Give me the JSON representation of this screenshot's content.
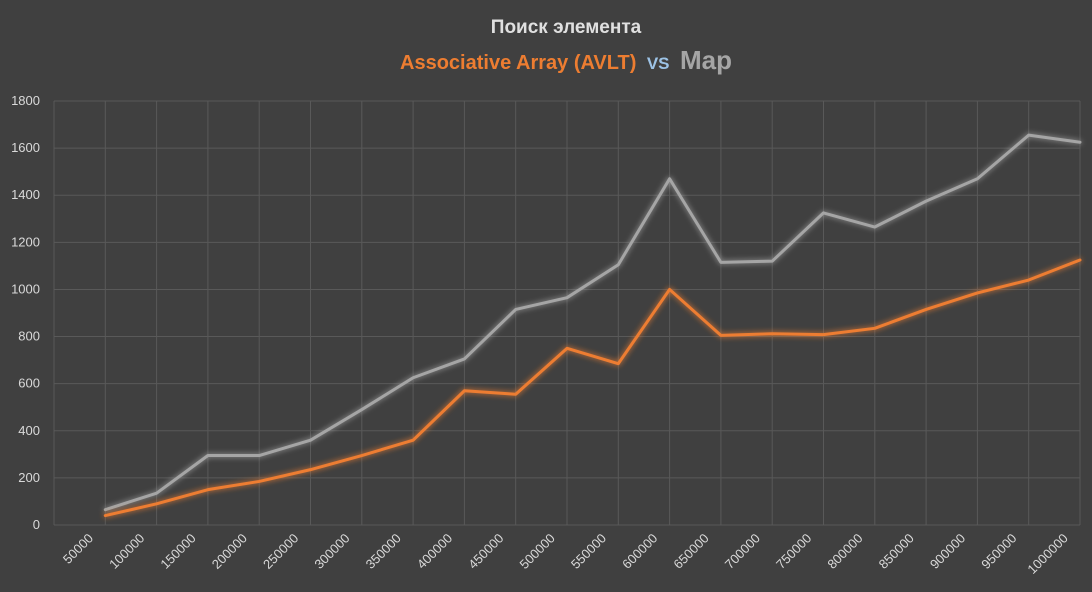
{
  "chart_data": {
    "type": "line",
    "title": "Поиск элемента",
    "subtitle": {
      "part1": "Associative Array (AVLT)",
      "vs": "VS",
      "part2": "Map"
    },
    "xlabel": "",
    "ylabel": "",
    "ylim": [
      0,
      1800
    ],
    "yticks": [
      0,
      200,
      400,
      600,
      800,
      1000,
      1200,
      1400,
      1600,
      1800
    ],
    "categories": [
      "50000",
      "100000",
      "150000",
      "200000",
      "250000",
      "300000",
      "350000",
      "400000",
      "450000",
      "500000",
      "550000",
      "600000",
      "650000",
      "700000",
      "750000",
      "800000",
      "850000",
      "900000",
      "950000",
      "1000000"
    ],
    "grid": true,
    "legend": "none",
    "series": [
      {
        "name": "Associative Array (AVLT)",
        "color": "#ED7D31",
        "values": [
          40,
          90,
          150,
          185,
          235,
          295,
          360,
          570,
          555,
          750,
          685,
          1000,
          805,
          812,
          808,
          835,
          915,
          985,
          1040,
          1125
        ]
      },
      {
        "name": "Map",
        "color": "#A5A5A5",
        "values": [
          65,
          135,
          295,
          295,
          360,
          490,
          625,
          705,
          915,
          965,
          1105,
          1470,
          1115,
          1120,
          1325,
          1265,
          1375,
          1470,
          1655,
          1625
        ]
      }
    ],
    "colors": {
      "background": "#404040",
      "grid": "#595959",
      "axis_text": "#D9D9D9",
      "title": "#E0E0E0",
      "vs": "#9DC3E6"
    }
  }
}
